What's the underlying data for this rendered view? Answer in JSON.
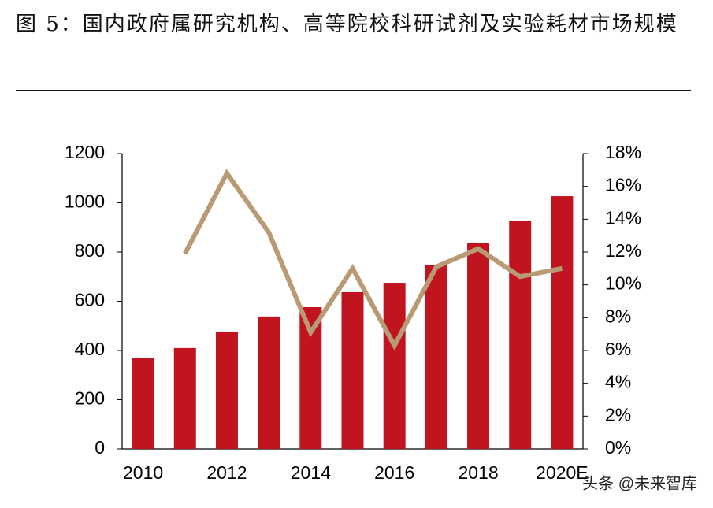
{
  "chart_data": {
    "type": "bar",
    "title": "图 5：国内政府属研究机构、高等院校科研试剂及实验耗材市场规模",
    "categories": [
      "2010",
      null,
      "2012",
      null,
      "2014",
      null,
      "2016",
      null,
      "2018",
      null,
      "2020E"
    ],
    "series": [
      {
        "type": "bar",
        "color": "#c0141f",
        "values": [
          368,
          410,
          477,
          538,
          576,
          637,
          675,
          749,
          838,
          925,
          1027
        ]
      },
      {
        "type": "line",
        "axis": "y2",
        "color": "#b89a74",
        "values": [
          null,
          11.9,
          16.8,
          13.2,
          7.1,
          11.0,
          6.3,
          11.1,
          12.2,
          10.5,
          11.0
        ]
      }
    ],
    "ylim": [
      0,
      1200
    ],
    "yticks": [
      0,
      200,
      400,
      600,
      800,
      1000,
      1200
    ],
    "y2lim": [
      0,
      18
    ],
    "y2ticks": [
      {
        "value": 0,
        "label": "0%"
      },
      {
        "value": 2,
        "label": "2%"
      },
      {
        "value": 4,
        "label": "4%"
      },
      {
        "value": 6,
        "label": "6%"
      },
      {
        "value": 8,
        "label": "8%"
      },
      {
        "value": 10,
        "label": "10%"
      },
      {
        "value": 12,
        "label": "12%"
      },
      {
        "value": 14,
        "label": "14%"
      },
      {
        "value": 16,
        "label": "16%"
      },
      {
        "value": 18,
        "label": "18%"
      }
    ],
    "grid": false,
    "watermark": "头条 @未来智库"
  }
}
